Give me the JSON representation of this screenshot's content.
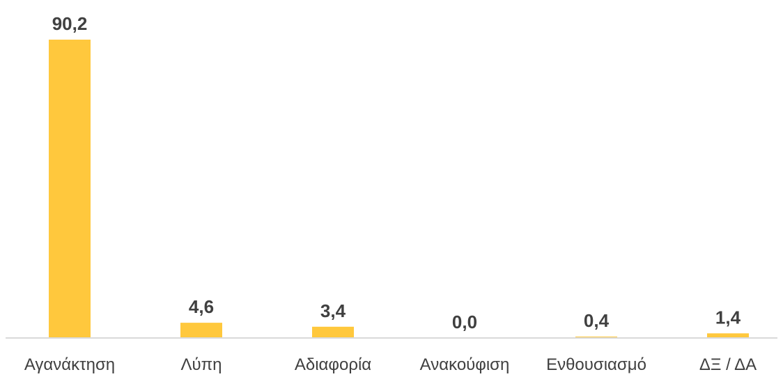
{
  "chart_data": {
    "type": "bar",
    "categories": [
      "Αγανάκτηση",
      "Λύπη",
      "Αδιαφορία",
      "Ανακούφιση",
      "Ενθουσιασμό",
      "ΔΞ / ΔΑ"
    ],
    "values": [
      90.2,
      4.6,
      3.4,
      0.0,
      0.4,
      1.4
    ],
    "value_labels": [
      "90,2",
      "4,6",
      "3,4",
      "0,0",
      "0,4",
      "1,4"
    ],
    "ylim": [
      0,
      90.2
    ],
    "grid": false,
    "legend": "none",
    "bar_color": "#FFC83D",
    "axis_color": "#D9D9D9",
    "text_color": "#404040"
  }
}
